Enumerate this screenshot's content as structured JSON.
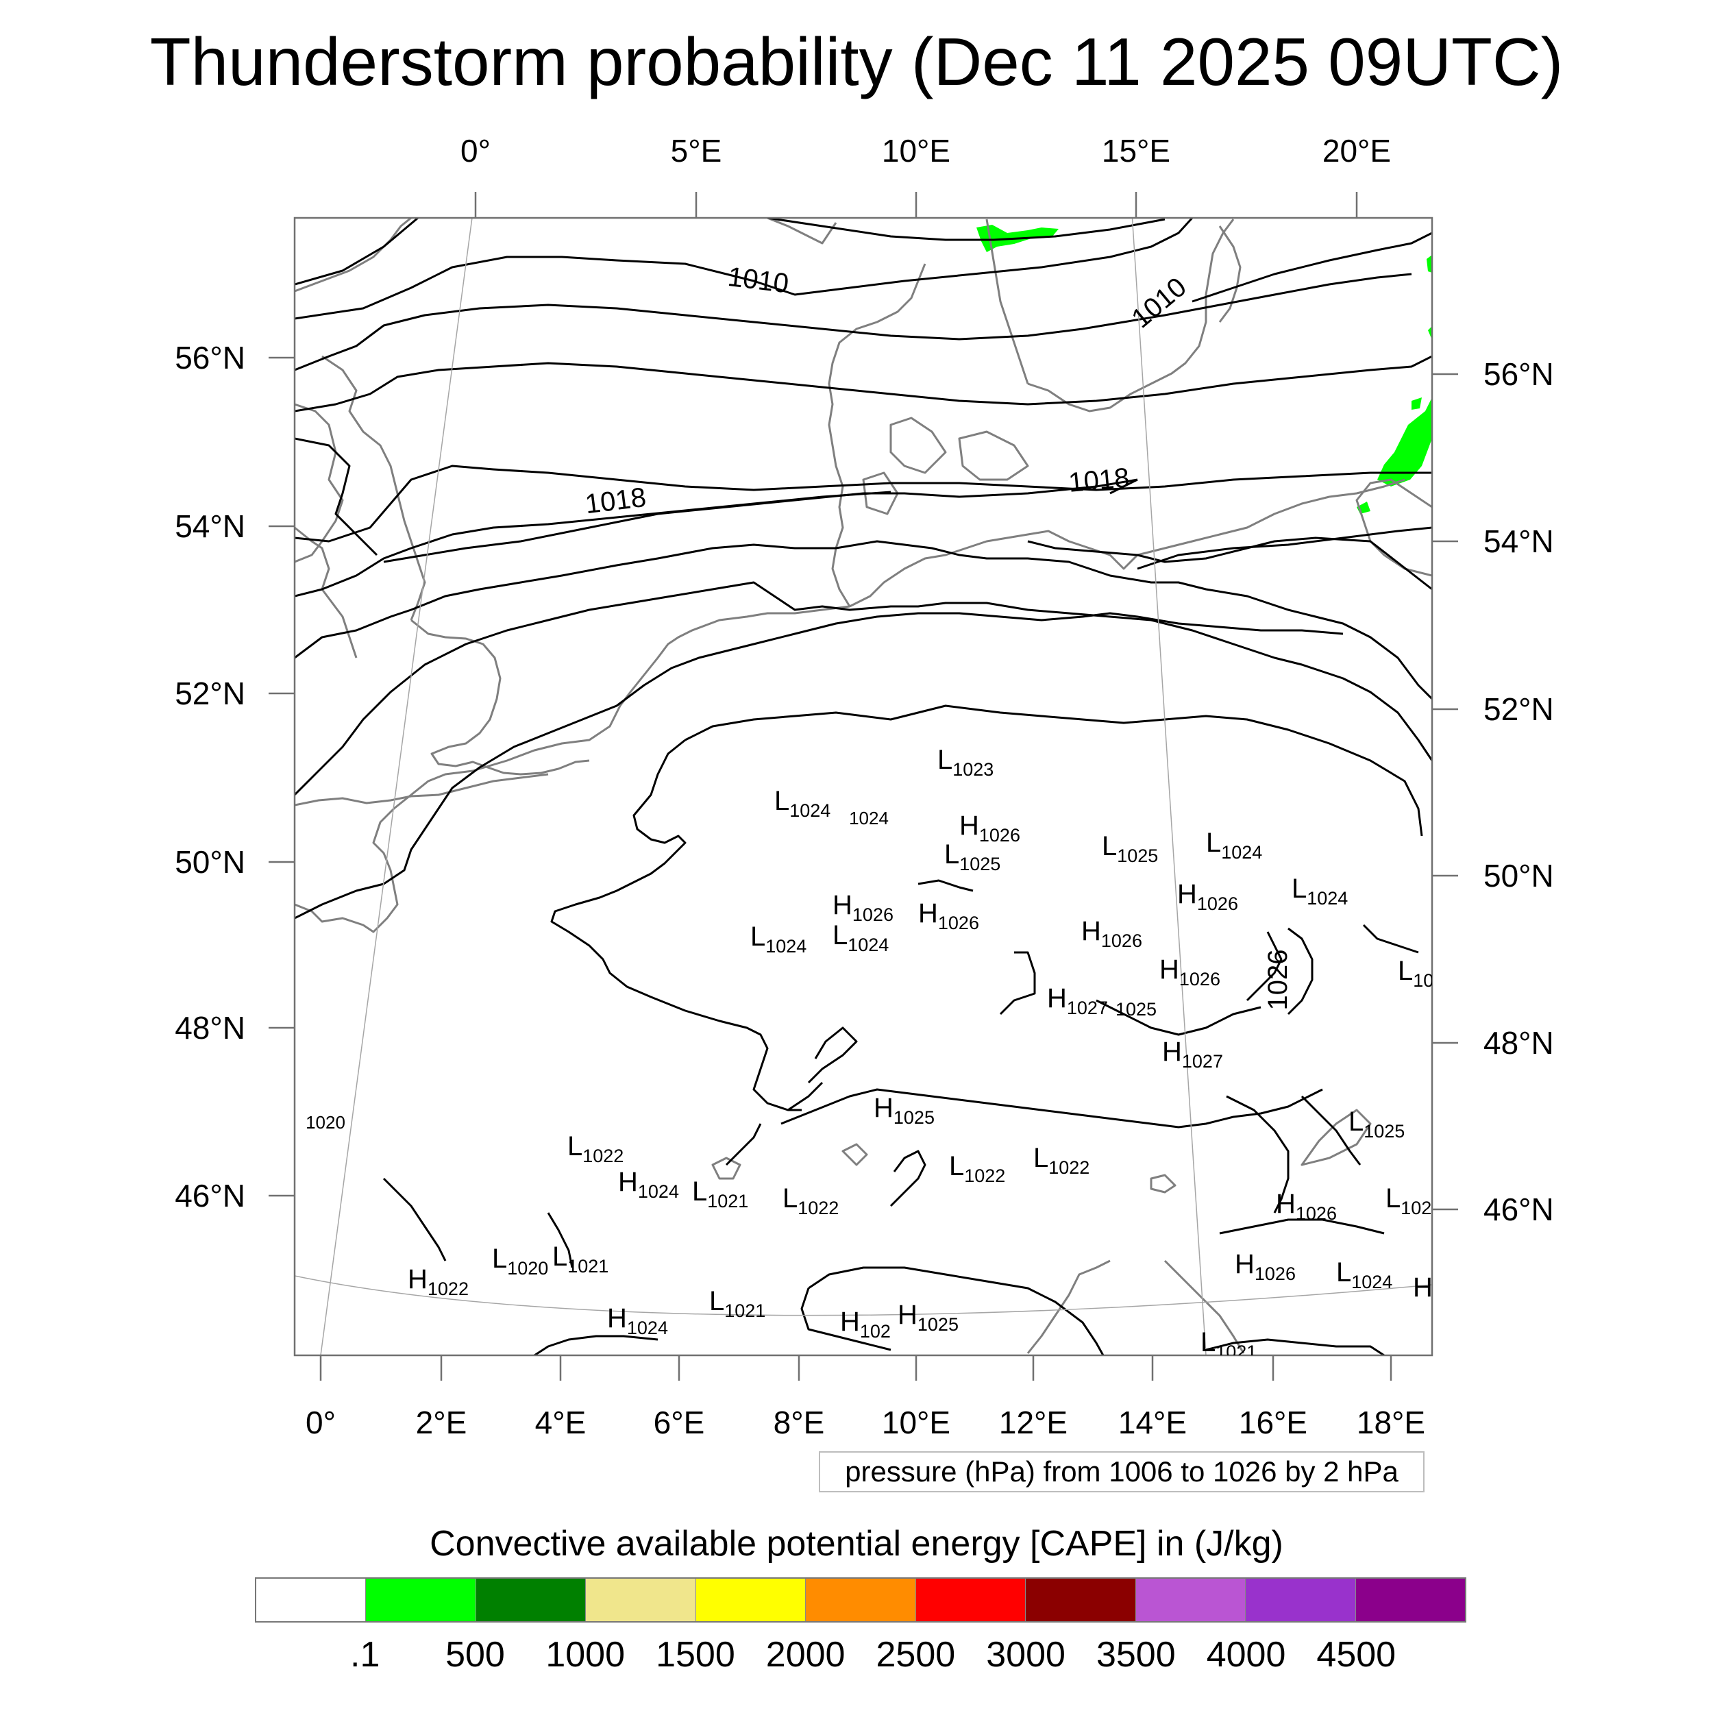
{
  "title": "Thunderstorm probability (Dec 11 2025 09UTC)",
  "map": {
    "top_lon_labels": [
      "0°",
      "5°E",
      "10°E",
      "15°E",
      "20°E"
    ],
    "bottom_lon_labels": [
      "0°",
      "2°E",
      "4°E",
      "6°E",
      "8°E",
      "10°E",
      "12°E",
      "14°E",
      "16°E",
      "18°E"
    ],
    "left_lat_labels": [
      "56°N",
      "54°N",
      "52°N",
      "50°N",
      "48°N",
      "46°N"
    ],
    "right_lat_labels": [
      "56°N",
      "54°N",
      "52°N",
      "50°N",
      "48°N",
      "46°N"
    ],
    "contour_labels": [
      "1010",
      "1010",
      "1018",
      "1018",
      "1026",
      "1020",
      "1024"
    ],
    "pressure_centers": [
      {
        "type": "L",
        "value": "1023"
      },
      {
        "type": "L",
        "value": "1024"
      },
      {
        "type": "H",
        "value": "1026"
      },
      {
        "type": "L",
        "value": "1025"
      },
      {
        "type": "L",
        "value": "1025"
      },
      {
        "type": "L",
        "value": "1024"
      },
      {
        "type": "L",
        "value": "1024"
      },
      {
        "type": "H",
        "value": "1026"
      },
      {
        "type": "L",
        "value": "1024"
      },
      {
        "type": "H",
        "value": "1026"
      },
      {
        "type": "H",
        "value": "1026"
      },
      {
        "type": "H",
        "value": "1026"
      },
      {
        "type": "L",
        "value": "1024"
      },
      {
        "type": "H",
        "value": "1026"
      },
      {
        "type": "L",
        "value": "10"
      },
      {
        "type": "H",
        "value": "1027"
      },
      {
        "type": "",
        "value": "1025"
      },
      {
        "type": "H",
        "value": "1027"
      },
      {
        "type": "H",
        "value": "1025"
      },
      {
        "type": "L",
        "value": "1025"
      },
      {
        "type": "L",
        "value": "1022"
      },
      {
        "type": "L",
        "value": "1022"
      },
      {
        "type": "L",
        "value": "1022"
      },
      {
        "type": "H",
        "value": "1024"
      },
      {
        "type": "L",
        "value": "1021"
      },
      {
        "type": "L",
        "value": "1022"
      },
      {
        "type": "H",
        "value": "1026"
      },
      {
        "type": "L",
        "value": "102"
      },
      {
        "type": "L",
        "value": "1020"
      },
      {
        "type": "L",
        "value": "1021"
      },
      {
        "type": "H",
        "value": "1022"
      },
      {
        "type": "H",
        "value": "1026"
      },
      {
        "type": "L",
        "value": "1024"
      },
      {
        "type": "H",
        "value": ""
      },
      {
        "type": "L",
        "value": "1021"
      },
      {
        "type": "H",
        "value": "1024"
      },
      {
        "type": "H",
        "value": "102"
      },
      {
        "type": "H",
        "value": "1025"
      },
      {
        "type": "L",
        "value": "1021"
      }
    ]
  },
  "pressure_note": "pressure (hPa) from 1006 to 1026 by 2 hPa",
  "cape": {
    "title": "Convective available potential energy [CAPE] in (J/kg)",
    "colors": [
      "#ffffff",
      "#00ff00",
      "#008000",
      "#f0e68c",
      "#ffff00",
      "#ff8c00",
      "#ff0000",
      "#8b0000",
      "#ba55d3",
      "#9932cc",
      "#8b008b"
    ],
    "labels": [
      ".1",
      "500",
      "1000",
      "1500",
      "2000",
      "2500",
      "3000",
      "3500",
      "4000",
      "4500"
    ]
  },
  "colors": {
    "coastline": "#7f7f7f",
    "contour": "#000000",
    "cape_green": "#00ff00"
  }
}
